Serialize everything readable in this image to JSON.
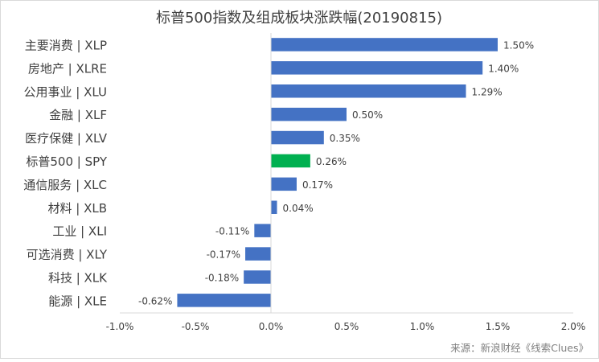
{
  "chart_data": {
    "type": "bar",
    "orientation": "horizontal",
    "title": "标普500指数及组成板块涨跌幅(20190815)",
    "xlabel": "",
    "ylabel": "",
    "xlim": [
      -1.0,
      2.0
    ],
    "x_ticks": [
      -1.0,
      -0.5,
      0.0,
      0.5,
      1.0,
      1.5,
      2.0
    ],
    "x_tick_labels": [
      "-1.0%",
      "-0.5%",
      "0.0%",
      "0.5%",
      "1.0%",
      "1.5%",
      "2.0%"
    ],
    "grid": false,
    "legend": "none",
    "categories": [
      "主要消费 | XLP",
      "房地产 | XLRE",
      "公用事业 | XLU",
      "金融 | XLF",
      "医疗保健 | XLV",
      "标普500 | SPY",
      "通信服务 | XLC",
      "材料 | XLB",
      "工业 | XLI",
      "可选消费 | XLY",
      "科技 | XLK",
      "能源 | XLE"
    ],
    "values": [
      1.5,
      1.4,
      1.29,
      0.5,
      0.35,
      0.26,
      0.17,
      0.04,
      -0.11,
      -0.17,
      -0.18,
      -0.62
    ],
    "data_labels": [
      "1.50%",
      "1.40%",
      "1.29%",
      "0.50%",
      "0.35%",
      "0.26%",
      "0.17%",
      "0.04%",
      "-0.11%",
      "-0.17%",
      "-0.18%",
      "-0.62%"
    ],
    "highlight_index": 5,
    "colors": {
      "bar": "#4472C4",
      "highlight": "#00B050",
      "axis": "#d9d9d9",
      "text": "#404040"
    }
  },
  "source": "来源：新浪财经《线索Clues》"
}
